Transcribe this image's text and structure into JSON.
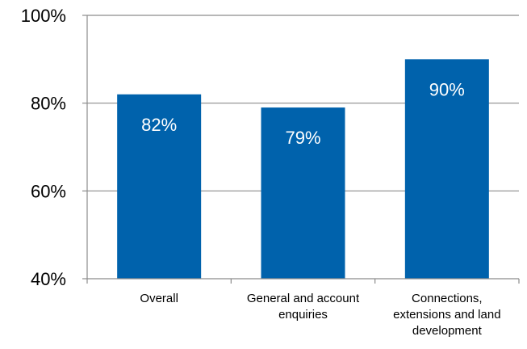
{
  "chart_data": {
    "type": "bar",
    "categories": [
      [
        "Overall"
      ],
      [
        "General and account",
        "enquiries"
      ],
      [
        "Connections,",
        "extensions and land",
        "development"
      ]
    ],
    "values": [
      82,
      79,
      90
    ],
    "data_labels": [
      "82%",
      "79%",
      "90%"
    ],
    "ylim": [
      40,
      100
    ],
    "yticks": [
      40,
      60,
      80,
      100
    ],
    "ytick_labels": [
      "40%",
      "60%",
      "80%",
      "100%"
    ],
    "grid": true,
    "legend": "none",
    "colors": {
      "bar": "#0062ac",
      "grid": "#8c8c8c",
      "axis": "#8c8c8c",
      "label": "#ffffff"
    }
  }
}
